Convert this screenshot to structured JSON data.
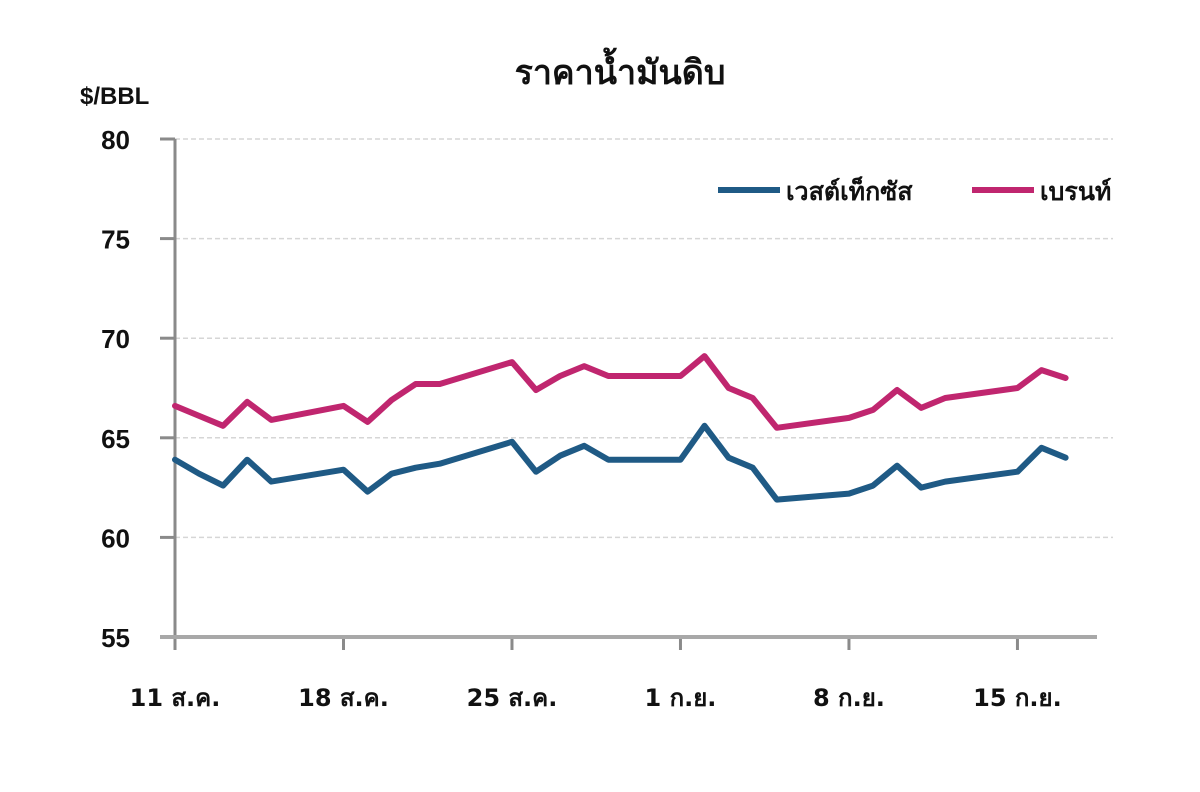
{
  "chart_data": {
    "type": "line",
    "title": "ราคาน้ำมันดิบ",
    "ylabel": "$/BBL",
    "xlabel": "",
    "ylim": [
      55,
      80
    ],
    "yticks": [
      55,
      60,
      65,
      70,
      75,
      80
    ],
    "grid": true,
    "legend_position": "top-right",
    "xtick_labels": [
      {
        "label": "11 ส.ค.",
        "day": 0
      },
      {
        "label": "18 ส.ค.",
        "day": 7
      },
      {
        "label": "25 ส.ค.",
        "day": 14
      },
      {
        "label": "1 ก.ย.",
        "day": 21
      },
      {
        "label": "8 ก.ย.",
        "day": 28
      },
      {
        "label": "15 ก.ย.",
        "day": 35
      }
    ],
    "x_days": [
      0,
      1,
      2,
      3,
      4,
      7,
      8,
      9,
      10,
      11,
      14,
      15,
      16,
      17,
      18,
      21,
      22,
      23,
      24,
      25,
      28,
      29,
      30,
      31,
      32,
      35,
      36,
      37
    ],
    "x": [
      "11 Aug",
      "12 Aug",
      "13 Aug",
      "14 Aug",
      "15 Aug",
      "18 Aug",
      "19 Aug",
      "20 Aug",
      "21 Aug",
      "22 Aug",
      "25 Aug",
      "26 Aug",
      "27 Aug",
      "28 Aug",
      "29 Aug",
      "1 Sep",
      "2 Sep",
      "3 Sep",
      "4 Sep",
      "5 Sep",
      "8 Sep",
      "9 Sep",
      "10 Sep",
      "11 Sep",
      "12 Sep",
      "15 Sep",
      "16 Sep",
      "17 Sep"
    ],
    "series": [
      {
        "name": "เวสต์เท็กซัส",
        "color": "#1f5a85",
        "values": [
          63.9,
          63.2,
          62.6,
          63.9,
          62.8,
          63.4,
          62.3,
          63.2,
          63.5,
          63.7,
          64.8,
          63.3,
          64.1,
          64.6,
          63.9,
          63.9,
          65.6,
          64.0,
          63.5,
          61.9,
          62.2,
          62.6,
          63.6,
          62.5,
          62.8,
          63.3,
          64.5,
          64.0
        ]
      },
      {
        "name": "เบรนท์",
        "color": "#c0266f",
        "values": [
          66.6,
          66.1,
          65.6,
          66.8,
          65.9,
          66.6,
          65.8,
          66.9,
          67.7,
          67.7,
          68.8,
          67.4,
          68.1,
          68.6,
          68.1,
          68.1,
          69.1,
          67.5,
          67.0,
          65.5,
          66.0,
          66.4,
          67.4,
          66.5,
          67.0,
          67.5,
          68.4,
          68.0
        ]
      }
    ]
  },
  "legend": {
    "items": [
      {
        "label": "เวสต์เท็กซัส",
        "color": "#1f5a85"
      },
      {
        "label": "เบรนท์",
        "color": "#c0266f"
      }
    ]
  }
}
